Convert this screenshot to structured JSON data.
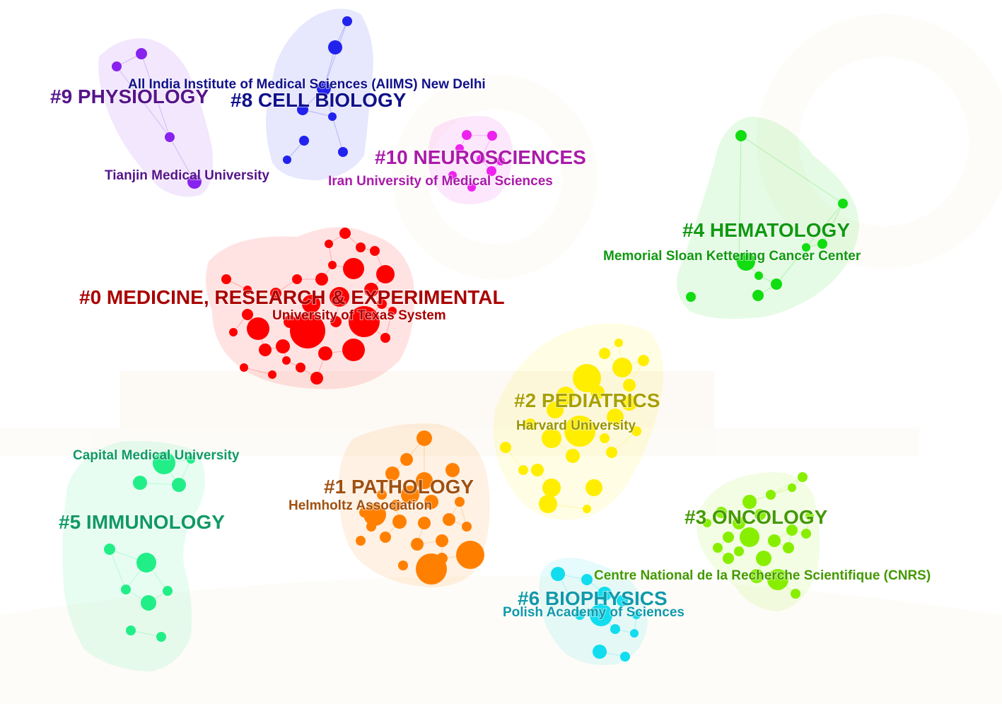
{
  "clusters": [
    {
      "id": "c0",
      "label": "#0 MEDICINE, RESEARCH & EXPERIMENTAL",
      "institution": "University of Texas System",
      "color": "#ff0000",
      "label_color": "#aa0000",
      "inst_color": "#aa0000"
    },
    {
      "id": "c1",
      "label": "#1 PATHOLOGY",
      "institution": "Helmholtz Association",
      "color": "#ff8000",
      "label_color": "#a05010",
      "inst_color": "#a05010"
    },
    {
      "id": "c2",
      "label": "#2 PEDIATRICS",
      "institution": "Harvard University",
      "color": "#ffee00",
      "label_color": "#a8a000",
      "inst_color": "#9a9600"
    },
    {
      "id": "c3",
      "label": "#3 ONCOLOGY",
      "institution": "Centre National de la Recherche Scientifique (CNRS)",
      "color": "#88ee00",
      "label_color": "#449900",
      "inst_color": "#449900"
    },
    {
      "id": "c4",
      "label": "#4 HEMATOLOGY",
      "institution": "Memorial Sloan Kettering Cancer Center",
      "color": "#11dd11",
      "label_color": "#119911",
      "inst_color": "#119911"
    },
    {
      "id": "c5",
      "label": "#5 IMMUNOLOGY",
      "institution": "Capital Medical University",
      "color": "#22ee88",
      "label_color": "#119966",
      "inst_color": "#119966"
    },
    {
      "id": "c6",
      "label": "#6 BIOPHYSICS",
      "institution": "Polish Academy of Sciences",
      "color": "#11ddee",
      "label_color": "#1199aa",
      "inst_color": "#1199aa"
    },
    {
      "id": "c8",
      "label": "#8 CELL BIOLOGY",
      "institution": "All India Institute of Medical Sciences (AIIMS) New Delhi",
      "color": "#2222ee",
      "label_color": "#11118a",
      "inst_color": "#11118a"
    },
    {
      "id": "c9",
      "label": "#9 PHYSIOLOGY",
      "institution": "Tianjin Medical University",
      "color": "#8822ee",
      "label_color": "#55158a",
      "inst_color": "#55158a"
    },
    {
      "id": "c10",
      "label": "#10 NEUROSCIENCES",
      "institution": "Iran University of Medical Sciences",
      "color": "#ee22ee",
      "label_color": "#aa1aaa",
      "inst_color": "#aa1aaa"
    }
  ]
}
